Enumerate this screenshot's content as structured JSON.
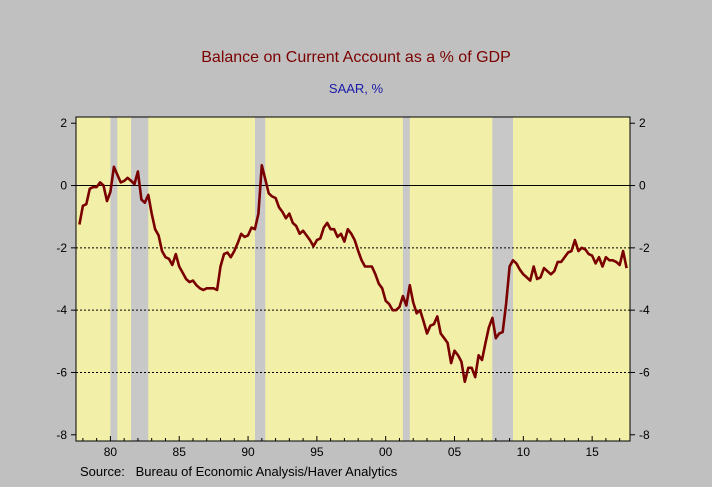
{
  "chart_data": {
    "type": "line",
    "title": "Balance on Current Account as a % of GDP",
    "subtitle": "SAAR, %",
    "source": "Source:   Bureau of Economic Analysis/Haver Analytics",
    "xlim": [
      1977.5,
      2017.75
    ],
    "ylim": [
      -8.2,
      2.2
    ],
    "x_ticks": [
      {
        "value": 1980,
        "label": "80"
      },
      {
        "value": 1985,
        "label": "85"
      },
      {
        "value": 1990,
        "label": "90"
      },
      {
        "value": 1995,
        "label": "95"
      },
      {
        "value": 2000,
        "label": "00"
      },
      {
        "value": 2005,
        "label": "05"
      },
      {
        "value": 2010,
        "label": "10"
      },
      {
        "value": 2015,
        "label": "15"
      }
    ],
    "y_ticks": [
      {
        "value": 2,
        "label": "2"
      },
      {
        "value": 0,
        "label": "0"
      },
      {
        "value": -2,
        "label": "-2"
      },
      {
        "value": -4,
        "label": "-4"
      },
      {
        "value": -6,
        "label": "-6"
      },
      {
        "value": -8,
        "label": "-8"
      }
    ],
    "reference_lines": [
      0,
      -2,
      -4,
      -6
    ],
    "recessions": [
      [
        1980.0,
        1980.5
      ],
      [
        1981.5,
        1982.75
      ],
      [
        1990.5,
        1991.25
      ],
      [
        2001.25,
        2001.75
      ],
      [
        2007.75,
        2009.25
      ]
    ],
    "colors": {
      "background": "#f2f0a8",
      "recession": "#c8c8c8",
      "line": "#7a0000",
      "frame": "#c0c0c0"
    },
    "series": [
      {
        "name": "",
        "points": [
          [
            1977.75,
            -1.25
          ],
          [
            1978.0,
            -0.65
          ],
          [
            1978.25,
            -0.6
          ],
          [
            1978.5,
            -0.1
          ],
          [
            1978.75,
            -0.05
          ],
          [
            1979.0,
            -0.05
          ],
          [
            1979.25,
            0.1
          ],
          [
            1979.5,
            0.0
          ],
          [
            1979.75,
            -0.5
          ],
          [
            1980.0,
            -0.2
          ],
          [
            1980.25,
            0.6
          ],
          [
            1980.5,
            0.35
          ],
          [
            1980.75,
            0.1
          ],
          [
            1981.0,
            0.15
          ],
          [
            1981.25,
            0.25
          ],
          [
            1981.5,
            0.15
          ],
          [
            1981.75,
            0.05
          ],
          [
            1982.0,
            0.45
          ],
          [
            1982.25,
            -0.45
          ],
          [
            1982.5,
            -0.55
          ],
          [
            1982.75,
            -0.3
          ],
          [
            1983.0,
            -0.9
          ],
          [
            1983.25,
            -1.4
          ],
          [
            1983.5,
            -1.6
          ],
          [
            1983.75,
            -2.1
          ],
          [
            1984.0,
            -2.3
          ],
          [
            1984.25,
            -2.35
          ],
          [
            1984.5,
            -2.55
          ],
          [
            1984.75,
            -2.2
          ],
          [
            1985.0,
            -2.6
          ],
          [
            1985.25,
            -2.8
          ],
          [
            1985.5,
            -3.0
          ],
          [
            1985.75,
            -3.1
          ],
          [
            1986.0,
            -3.05
          ],
          [
            1986.25,
            -3.2
          ],
          [
            1986.5,
            -3.3
          ],
          [
            1986.75,
            -3.35
          ],
          [
            1987.0,
            -3.3
          ],
          [
            1987.25,
            -3.3
          ],
          [
            1987.5,
            -3.3
          ],
          [
            1987.75,
            -3.35
          ],
          [
            1988.0,
            -2.6
          ],
          [
            1988.25,
            -2.2
          ],
          [
            1988.5,
            -2.15
          ],
          [
            1988.75,
            -2.3
          ],
          [
            1989.0,
            -2.1
          ],
          [
            1989.25,
            -1.85
          ],
          [
            1989.5,
            -1.55
          ],
          [
            1989.75,
            -1.65
          ],
          [
            1990.0,
            -1.6
          ],
          [
            1990.25,
            -1.35
          ],
          [
            1990.5,
            -1.4
          ],
          [
            1990.75,
            -0.9
          ],
          [
            1991.0,
            0.65
          ],
          [
            1991.25,
            0.2
          ],
          [
            1991.5,
            -0.25
          ],
          [
            1991.75,
            -0.35
          ],
          [
            1992.0,
            -0.4
          ],
          [
            1992.25,
            -0.7
          ],
          [
            1992.5,
            -0.85
          ],
          [
            1992.75,
            -1.05
          ],
          [
            1993.0,
            -0.9
          ],
          [
            1993.25,
            -1.2
          ],
          [
            1993.5,
            -1.3
          ],
          [
            1993.75,
            -1.55
          ],
          [
            1994.0,
            -1.45
          ],
          [
            1994.25,
            -1.6
          ],
          [
            1994.5,
            -1.75
          ],
          [
            1994.75,
            -1.95
          ],
          [
            1995.0,
            -1.75
          ],
          [
            1995.25,
            -1.7
          ],
          [
            1995.5,
            -1.35
          ],
          [
            1995.75,
            -1.2
          ],
          [
            1996.0,
            -1.4
          ],
          [
            1996.25,
            -1.4
          ],
          [
            1996.5,
            -1.65
          ],
          [
            1996.75,
            -1.55
          ],
          [
            1997.0,
            -1.8
          ],
          [
            1997.25,
            -1.4
          ],
          [
            1997.5,
            -1.55
          ],
          [
            1997.75,
            -1.75
          ],
          [
            1998.0,
            -2.1
          ],
          [
            1998.25,
            -2.4
          ],
          [
            1998.5,
            -2.6
          ],
          [
            1998.75,
            -2.6
          ],
          [
            1999.0,
            -2.6
          ],
          [
            1999.25,
            -2.85
          ],
          [
            1999.5,
            -3.15
          ],
          [
            1999.75,
            -3.3
          ],
          [
            2000.0,
            -3.7
          ],
          [
            2000.25,
            -3.8
          ],
          [
            2000.5,
            -4.0
          ],
          [
            2000.75,
            -4.0
          ],
          [
            2001.0,
            -3.9
          ],
          [
            2001.25,
            -3.55
          ],
          [
            2001.5,
            -3.85
          ],
          [
            2001.75,
            -3.2
          ],
          [
            2002.0,
            -3.75
          ],
          [
            2002.25,
            -4.1
          ],
          [
            2002.5,
            -4.0
          ],
          [
            2002.75,
            -4.35
          ],
          [
            2003.0,
            -4.75
          ],
          [
            2003.25,
            -4.5
          ],
          [
            2003.5,
            -4.45
          ],
          [
            2003.75,
            -4.2
          ],
          [
            2004.0,
            -4.75
          ],
          [
            2004.25,
            -4.9
          ],
          [
            2004.5,
            -5.05
          ],
          [
            2004.75,
            -5.7
          ],
          [
            2005.0,
            -5.3
          ],
          [
            2005.25,
            -5.45
          ],
          [
            2005.5,
            -5.65
          ],
          [
            2005.75,
            -6.3
          ],
          [
            2006.0,
            -5.85
          ],
          [
            2006.25,
            -5.85
          ],
          [
            2006.5,
            -6.15
          ],
          [
            2006.75,
            -5.45
          ],
          [
            2007.0,
            -5.6
          ],
          [
            2007.25,
            -5.05
          ],
          [
            2007.5,
            -4.55
          ],
          [
            2007.75,
            -4.25
          ],
          [
            2008.0,
            -4.9
          ],
          [
            2008.25,
            -4.75
          ],
          [
            2008.5,
            -4.7
          ],
          [
            2008.75,
            -3.8
          ],
          [
            2009.0,
            -2.6
          ],
          [
            2009.25,
            -2.4
          ],
          [
            2009.5,
            -2.5
          ],
          [
            2009.75,
            -2.7
          ],
          [
            2010.0,
            -2.85
          ],
          [
            2010.25,
            -2.95
          ],
          [
            2010.5,
            -3.05
          ],
          [
            2010.75,
            -2.6
          ],
          [
            2011.0,
            -3.0
          ],
          [
            2011.25,
            -2.95
          ],
          [
            2011.5,
            -2.65
          ],
          [
            2011.75,
            -2.75
          ],
          [
            2012.0,
            -2.85
          ],
          [
            2012.25,
            -2.75
          ],
          [
            2012.5,
            -2.45
          ],
          [
            2012.75,
            -2.45
          ],
          [
            2013.0,
            -2.3
          ],
          [
            2013.25,
            -2.15
          ],
          [
            2013.5,
            -2.1
          ],
          [
            2013.75,
            -1.75
          ],
          [
            2014.0,
            -2.1
          ],
          [
            2014.25,
            -2.0
          ],
          [
            2014.5,
            -2.05
          ],
          [
            2014.75,
            -2.2
          ],
          [
            2015.0,
            -2.25
          ],
          [
            2015.25,
            -2.5
          ],
          [
            2015.5,
            -2.3
          ],
          [
            2015.75,
            -2.6
          ],
          [
            2016.0,
            -2.3
          ],
          [
            2016.25,
            -2.4
          ],
          [
            2016.5,
            -2.4
          ],
          [
            2016.75,
            -2.45
          ],
          [
            2017.0,
            -2.55
          ],
          [
            2017.25,
            -2.1
          ],
          [
            2017.5,
            -2.65
          ]
        ]
      }
    ]
  }
}
